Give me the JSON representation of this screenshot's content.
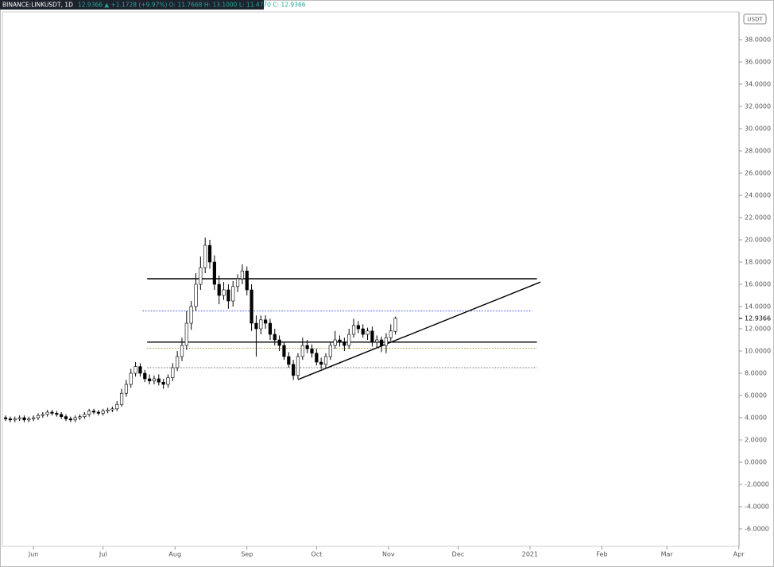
{
  "chart_data": {
    "type": "candlestick",
    "title": "BINANCE:LINKUSDT, 1D",
    "subtitle": "12.9366 ▲ +1.1728 (+9.97%) O: 11.7668 H: 13.1000 L: 11.4770 C: 12.9366",
    "currency": "USDT",
    "last_price": {
      "value": 12.9366,
      "label": "12.9366"
    },
    "x": [
      -12,
      -10,
      -8,
      -6,
      -4,
      -2,
      0,
      2,
      4,
      6,
      8,
      10,
      12,
      14,
      16,
      18,
      20,
      22,
      24,
      26,
      28,
      30,
      32,
      34,
      36,
      38,
      40,
      42,
      44,
      46,
      48,
      50,
      52,
      54,
      56,
      58,
      60,
      62,
      64,
      66,
      68,
      70,
      72,
      74,
      76,
      78,
      80,
      82,
      84,
      86,
      88,
      90,
      92,
      94,
      96,
      98,
      100,
      102,
      104,
      106,
      108,
      110,
      112,
      114,
      116,
      118,
      120,
      122,
      124,
      126,
      128,
      130,
      132,
      134,
      136,
      138,
      140,
      142,
      144,
      146,
      148,
      150,
      152,
      154,
      156
    ],
    "open": [
      4.0,
      3.9,
      3.8,
      3.9,
      4.0,
      3.8,
      3.9,
      4.0,
      4.2,
      4.3,
      4.5,
      4.4,
      4.3,
      4.1,
      3.9,
      3.8,
      4.0,
      4.1,
      4.3,
      4.6,
      4.5,
      4.4,
      4.6,
      4.7,
      4.8,
      5.2,
      6.2,
      7.0,
      8.0,
      8.6,
      8.0,
      7.5,
      7.3,
      7.5,
      7.2,
      7.0,
      7.6,
      8.5,
      9.5,
      10.5,
      12.5,
      14.0,
      16.0,
      17.5,
      19.5,
      18.0,
      16.0,
      15.0,
      15.5,
      14.5,
      15.8,
      16.5,
      17.2,
      15.5,
      12.5,
      12.0,
      12.8,
      12.5,
      11.5,
      11.0,
      10.5,
      9.5,
      8.8,
      7.8,
      9.5,
      10.5,
      10.2,
      9.8,
      9.0,
      8.8,
      9.5,
      10.5,
      11.0,
      10.8,
      10.5,
      11.5,
      12.3,
      12.0,
      11.5,
      11.8,
      10.8,
      11.0,
      10.5,
      11.2,
      11.77
    ],
    "high": [
      4.2,
      4.1,
      4.1,
      4.2,
      4.2,
      4.1,
      4.2,
      4.4,
      4.5,
      4.7,
      4.7,
      4.6,
      4.5,
      4.3,
      4.1,
      4.2,
      4.3,
      4.5,
      4.8,
      4.8,
      4.7,
      4.8,
      4.9,
      5.0,
      5.5,
      6.6,
      7.4,
      8.4,
      9.0,
      8.9,
      8.3,
      7.9,
      7.8,
      7.9,
      7.5,
      7.9,
      8.9,
      10.0,
      11.2,
      13.6,
      14.5,
      17.0,
      18.5,
      20.2,
      20.0,
      18.6,
      16.8,
      16.2,
      16.0,
      16.3,
      16.9,
      17.8,
      17.6,
      16.0,
      13.2,
      13.2,
      13.2,
      12.9,
      12.0,
      11.4,
      10.8,
      9.9,
      9.2,
      9.8,
      11.2,
      11.0,
      10.6,
      10.2,
      9.4,
      9.8,
      10.8,
      11.8,
      11.4,
      11.2,
      12.0,
      12.9,
      12.7,
      12.4,
      12.1,
      12.2,
      11.4,
      11.3,
      11.6,
      12.4,
      13.1
    ],
    "low": [
      3.7,
      3.6,
      3.6,
      3.7,
      3.6,
      3.6,
      3.7,
      3.8,
      4.0,
      4.1,
      4.2,
      4.1,
      3.9,
      3.7,
      3.6,
      3.6,
      3.8,
      3.9,
      4.1,
      4.3,
      4.2,
      4.2,
      4.4,
      4.5,
      4.6,
      5.0,
      5.9,
      6.7,
      7.7,
      7.7,
      7.2,
      7.0,
      7.0,
      6.9,
      6.6,
      6.7,
      7.3,
      8.2,
      9.1,
      10.1,
      11.9,
      13.6,
      15.5,
      17.0,
      17.4,
      15.5,
      14.2,
      14.6,
      13.8,
      14.0,
      15.3,
      16.0,
      15.0,
      11.8,
      9.5,
      11.5,
      12.0,
      11.0,
      10.5,
      10.0,
      9.2,
      8.5,
      7.4,
      7.5,
      9.2,
      9.8,
      9.4,
      8.7,
      8.4,
      8.5,
      9.2,
      10.2,
      10.4,
      10.0,
      10.2,
      11.2,
      11.6,
      11.2,
      11.0,
      10.4,
      10.3,
      9.9,
      9.8,
      10.9,
      11.48
    ],
    "close": [
      3.9,
      3.8,
      3.9,
      4.0,
      3.8,
      3.9,
      4.0,
      4.2,
      4.3,
      4.5,
      4.4,
      4.3,
      4.1,
      3.9,
      3.8,
      4.0,
      4.1,
      4.3,
      4.6,
      4.5,
      4.4,
      4.6,
      4.7,
      4.8,
      5.2,
      6.2,
      7.0,
      8.0,
      8.6,
      8.0,
      7.5,
      7.3,
      7.5,
      7.2,
      7.0,
      7.6,
      8.5,
      9.5,
      10.5,
      12.5,
      14.0,
      16.0,
      17.5,
      19.5,
      18.0,
      16.0,
      15.0,
      15.5,
      14.5,
      15.8,
      16.5,
      17.2,
      15.5,
      12.5,
      12.0,
      12.8,
      12.5,
      11.5,
      11.0,
      10.5,
      9.5,
      8.8,
      7.8,
      9.5,
      10.5,
      10.2,
      9.8,
      9.0,
      8.8,
      9.5,
      10.5,
      11.0,
      10.8,
      10.5,
      11.5,
      12.3,
      12.0,
      11.5,
      11.8,
      10.8,
      11.0,
      10.5,
      11.2,
      11.8,
      12.94
    ],
    "up_color": "#ffffff",
    "down_color": "#000000",
    "wick_color": "#000000",
    "lines": [
      {
        "x": [
          49,
          217
        ],
        "y": [
          16.5,
          16.5
        ],
        "color": "#000000",
        "style": "solid"
      },
      {
        "x": [
          47,
          215
        ],
        "y": [
          13.6,
          13.6
        ],
        "color": "#2a3cf0",
        "style": "dotted"
      },
      {
        "x": [
          49,
          217
        ],
        "y": [
          10.8,
          10.8
        ],
        "color": "#000000",
        "style": "solid"
      },
      {
        "x": [
          49,
          217
        ],
        "y": [
          10.25,
          10.25
        ],
        "color": "#b08a30",
        "style": "dotted"
      },
      {
        "x": [
          49,
          217
        ],
        "y": [
          8.5,
          8.5
        ],
        "color": "#666666",
        "style": "dotted"
      },
      {
        "x": [
          114,
          218.5
        ],
        "y": [
          7.43,
          16.2
        ],
        "color": "#000000",
        "style": "solid"
      }
    ],
    "xlim": [
      -13.4,
      304.1
    ],
    "xticks": [
      {
        "value": 0,
        "label": "Jun"
      },
      {
        "value": 30,
        "label": "Jul"
      },
      {
        "value": 61,
        "label": "Aug"
      },
      {
        "value": 92,
        "label": "Sep"
      },
      {
        "value": 122,
        "label": "Oct"
      },
      {
        "value": 153,
        "label": "Nov"
      },
      {
        "value": 183,
        "label": "Dec"
      },
      {
        "value": 214,
        "label": "2021"
      },
      {
        "value": 245,
        "label": "Feb"
      },
      {
        "value": 273,
        "label": "Mar"
      },
      {
        "value": 304,
        "label": "Apr"
      }
    ],
    "ylim": [
      -7.57,
      40.5
    ],
    "yticks": [
      {
        "value": -6,
        "label": "-6.0000"
      },
      {
        "value": -4,
        "label": "-4.0000"
      },
      {
        "value": -2,
        "label": "-2.0000"
      },
      {
        "value": 0,
        "label": "0.0000"
      },
      {
        "value": 2,
        "label": "2.0000"
      },
      {
        "value": 4,
        "label": "4.0000"
      },
      {
        "value": 6,
        "label": "6.0000"
      },
      {
        "value": 8,
        "label": "8.0000"
      },
      {
        "value": 10,
        "label": "10.0000"
      },
      {
        "value": 12,
        "label": "12.0000"
      },
      {
        "value": 14,
        "label": "14.0000"
      },
      {
        "value": 16,
        "label": "16.0000"
      },
      {
        "value": 18,
        "label": "18.0000"
      },
      {
        "value": 20,
        "label": "20.0000"
      },
      {
        "value": 22,
        "label": "22.0000"
      },
      {
        "value": 24,
        "label": "24.0000"
      },
      {
        "value": 26,
        "label": "26.0000"
      },
      {
        "value": 28,
        "label": "28.0000"
      },
      {
        "value": 30,
        "label": "30.0000"
      },
      {
        "value": 32,
        "label": "32.0000"
      },
      {
        "value": 34,
        "label": "34.0000"
      },
      {
        "value": 36,
        "label": "36.0000"
      },
      {
        "value": 38,
        "label": "38.0000"
      }
    ],
    "grid": false
  }
}
